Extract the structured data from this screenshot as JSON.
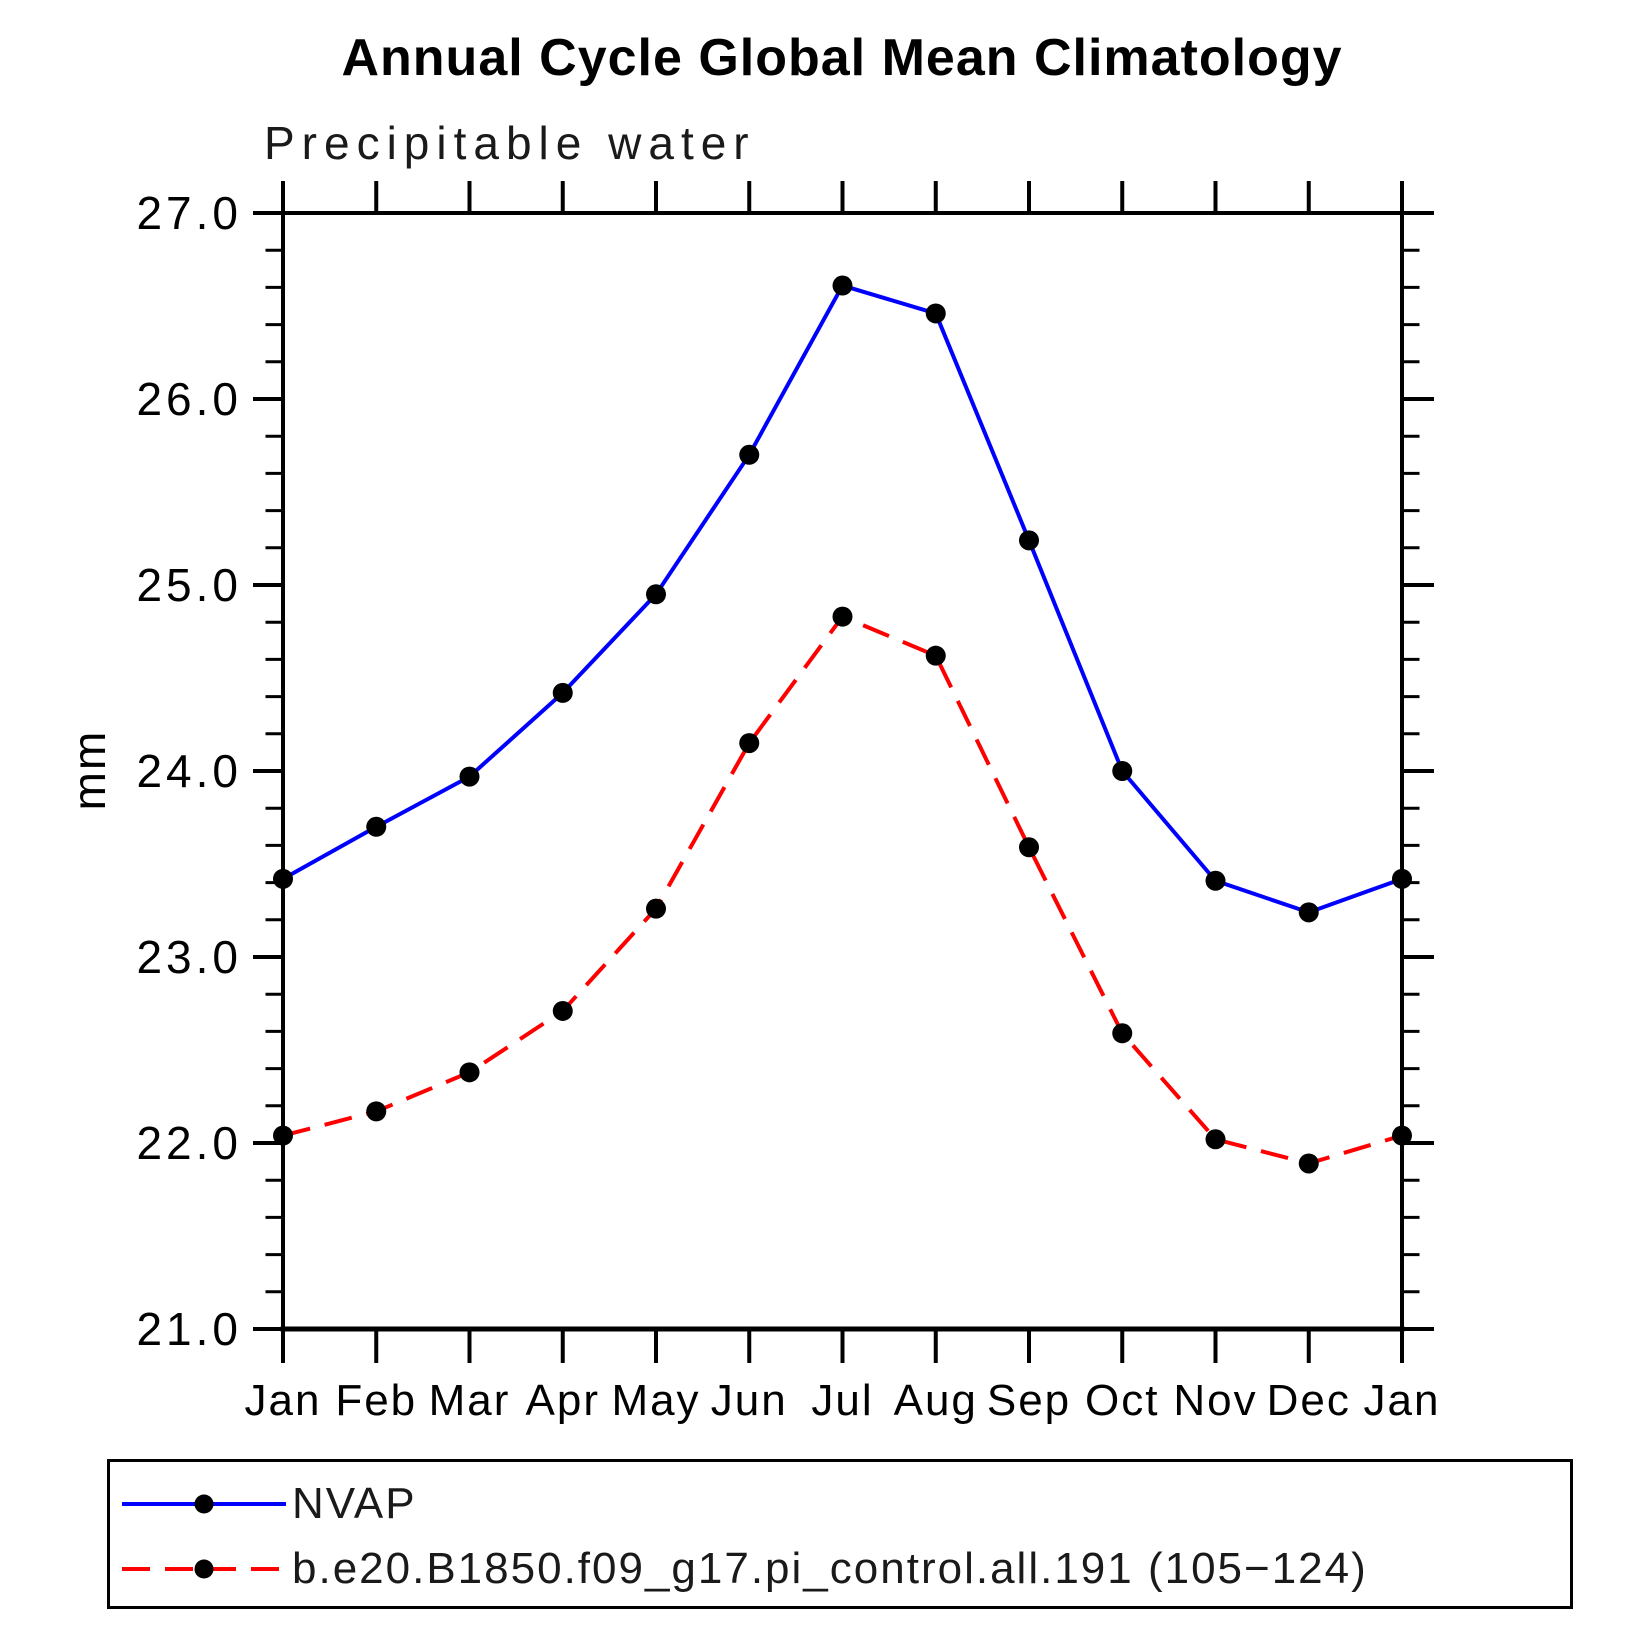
{
  "title": "Annual Cycle Global Mean Climatology",
  "subtitle": "Precipitable water",
  "chart_data": {
    "type": "line",
    "title": "Annual Cycle Global Mean Climatology",
    "subtitle": "Precipitable water",
    "xlabel": "",
    "ylabel": "mm",
    "ylim": [
      21.0,
      27.0
    ],
    "y_major_ticks": [
      "21.0",
      "22.0",
      "23.0",
      "24.0",
      "25.0",
      "26.0",
      "27.0"
    ],
    "y_minor_step": 0.2,
    "grid": false,
    "legend_position": "bottom",
    "categories": [
      "Jan",
      "Feb",
      "Mar",
      "Apr",
      "May",
      "Jun",
      "Jul",
      "Aug",
      "Sep",
      "Oct",
      "Nov",
      "Dec",
      "Jan"
    ],
    "series": [
      {
        "name": "NVAP",
        "color": "#0000ff",
        "line_style": "solid",
        "marker": "filled-circle",
        "marker_color": "#000000",
        "values": [
          23.42,
          23.7,
          23.97,
          24.42,
          24.95,
          25.7,
          26.61,
          26.46,
          25.24,
          24.0,
          23.41,
          23.24,
          23.42
        ]
      },
      {
        "name": "b.e20.B1850.f09_g17.pi_control.all.191 (105−124)",
        "color": "#ff0000",
        "line_style": "dashed",
        "marker": "filled-circle",
        "marker_color": "#000000",
        "values": [
          22.04,
          22.17,
          22.38,
          22.71,
          23.26,
          24.15,
          24.83,
          24.62,
          23.59,
          22.59,
          22.02,
          21.89,
          22.04
        ]
      }
    ]
  }
}
